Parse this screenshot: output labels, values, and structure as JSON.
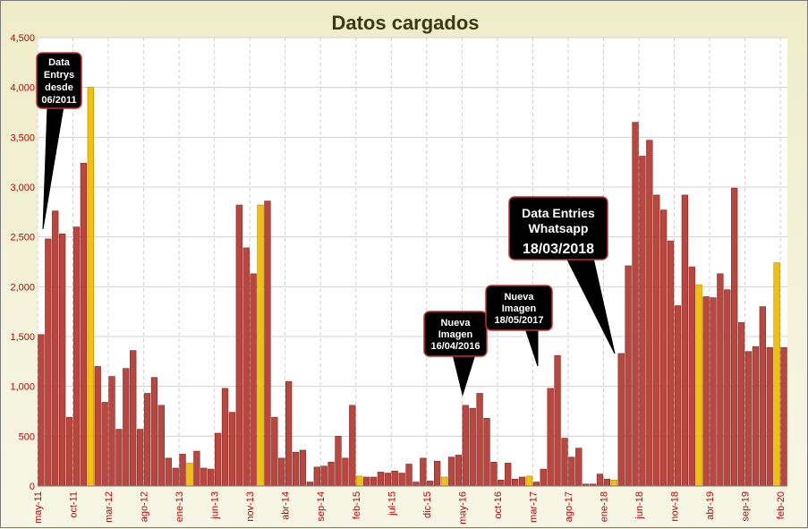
{
  "chart_data": {
    "type": "bar",
    "title": "Datos cargados",
    "xlabel": "",
    "ylabel": "",
    "ylim": [
      0,
      4500
    ],
    "yticks": [
      "0",
      "500",
      "1,000",
      "1,500",
      "2,000",
      "2,500",
      "3,000",
      "3,500",
      "4,000",
      "4,500"
    ],
    "grid": true,
    "colors": {
      "normal": "#b9473f",
      "highlight": "#f2c10e",
      "plot_bg": "#ffffff",
      "grid": "#d0d0d0"
    },
    "categories": [
      "may-11",
      "jun-11",
      "jul-11",
      "ago-11",
      "sep-11",
      "oct-11",
      "nov-11",
      "dic-11",
      "ene-12",
      "feb-12",
      "mar-12",
      "abr-12",
      "may-12",
      "jun-12",
      "jul-12",
      "ago-12",
      "sep-12",
      "oct-12",
      "nov-12",
      "dic-12",
      "ene-13",
      "feb-13",
      "mar-13",
      "abr-13",
      "may-13",
      "jun-13",
      "jul-13",
      "ago-13",
      "sep-13",
      "oct-13",
      "nov-13",
      "dic-13",
      "ene-14",
      "feb-14",
      "mar-14",
      "abr-14",
      "may-14",
      "jun-14",
      "jul-14",
      "ago-14",
      "sep-14",
      "oct-14",
      "nov-14",
      "dic-14",
      "ene-15",
      "feb-15",
      "mar-15",
      "abr-15",
      "may-15",
      "jun-15",
      "jul-15",
      "ago-15",
      "sep-15",
      "oct-15",
      "nov-15",
      "dic-15",
      "ene-16",
      "feb-16",
      "mar-16",
      "abr-16",
      "may-16",
      "jun-16",
      "jul-16",
      "ago-16",
      "sep-16",
      "oct-16",
      "nov-16",
      "dic-16",
      "ene-17",
      "feb-17",
      "mar-17",
      "abr-17",
      "may-17",
      "jun-17",
      "jul-17",
      "ago-17",
      "sep-17",
      "oct-17",
      "nov-17",
      "dic-17",
      "ene-18",
      "feb-18",
      "mar-18",
      "abr-18",
      "may-18",
      "jun-18",
      "jul-18",
      "ago-18",
      "sep-18",
      "oct-18",
      "nov-18",
      "dic-18",
      "ene-19",
      "feb-19",
      "mar-19",
      "abr-19",
      "may-19",
      "jun-19",
      "jul-19",
      "ago-19",
      "sep-19",
      "oct-19",
      "nov-19",
      "dic-19",
      "ene-20",
      "feb-20"
    ],
    "values": [
      1520,
      2480,
      2760,
      2530,
      690,
      2600,
      3240,
      4000,
      1200,
      840,
      1100,
      570,
      1180,
      1360,
      570,
      930,
      1090,
      810,
      280,
      180,
      320,
      230,
      350,
      180,
      170,
      530,
      980,
      740,
      2820,
      2390,
      2130,
      2820,
      2860,
      690,
      280,
      1050,
      340,
      360,
      40,
      190,
      200,
      240,
      500,
      280,
      810,
      100,
      90,
      90,
      140,
      130,
      150,
      130,
      220,
      40,
      280,
      50,
      250,
      90,
      290,
      310,
      810,
      780,
      930,
      680,
      240,
      60,
      230,
      70,
      90,
      100,
      40,
      170,
      980,
      1310,
      480,
      290,
      380,
      20,
      20,
      120,
      70,
      60,
      1330,
      2210,
      3650,
      3310,
      3470,
      2920,
      2770,
      2460,
      1810,
      2920,
      2200,
      2020,
      1900,
      1890,
      2130,
      1970,
      2990,
      1640,
      1350,
      1400,
      1800,
      1390,
      2240,
      1390
    ],
    "highlight_categories": [
      "dic-11",
      "feb-13",
      "dic-13",
      "feb-15",
      "feb-16",
      "feb-17",
      "feb-18",
      "feb-19",
      "ene-20"
    ],
    "xtick_labels": [
      "may-11",
      "oct-11",
      "mar-12",
      "ago-12",
      "ene-13",
      "jun-13",
      "nov-13",
      "abr-14",
      "sep-14",
      "feb-15",
      "jul-15",
      "dic-15",
      "may-16",
      "oct-16",
      "mar-17",
      "ago-17",
      "ene-18",
      "jun-18",
      "nov-18",
      "abr-19",
      "sep-19",
      "feb-20"
    ],
    "annotations": [
      {
        "lines": [
          "Data",
          "Entrys",
          "desde",
          "06/2011"
        ],
        "points_to": "may-11"
      },
      {
        "lines": [
          "Nueva",
          "Imagen",
          "16/04/2016"
        ],
        "points_to": "abr-16"
      },
      {
        "lines": [
          "Nueva",
          "Imagen",
          "18/05/2017"
        ],
        "points_to": "may-17"
      },
      {
        "lines": [
          "Data Entries",
          "Whatsapp",
          "18/03/2018"
        ],
        "points_to": "mar-18"
      }
    ]
  }
}
